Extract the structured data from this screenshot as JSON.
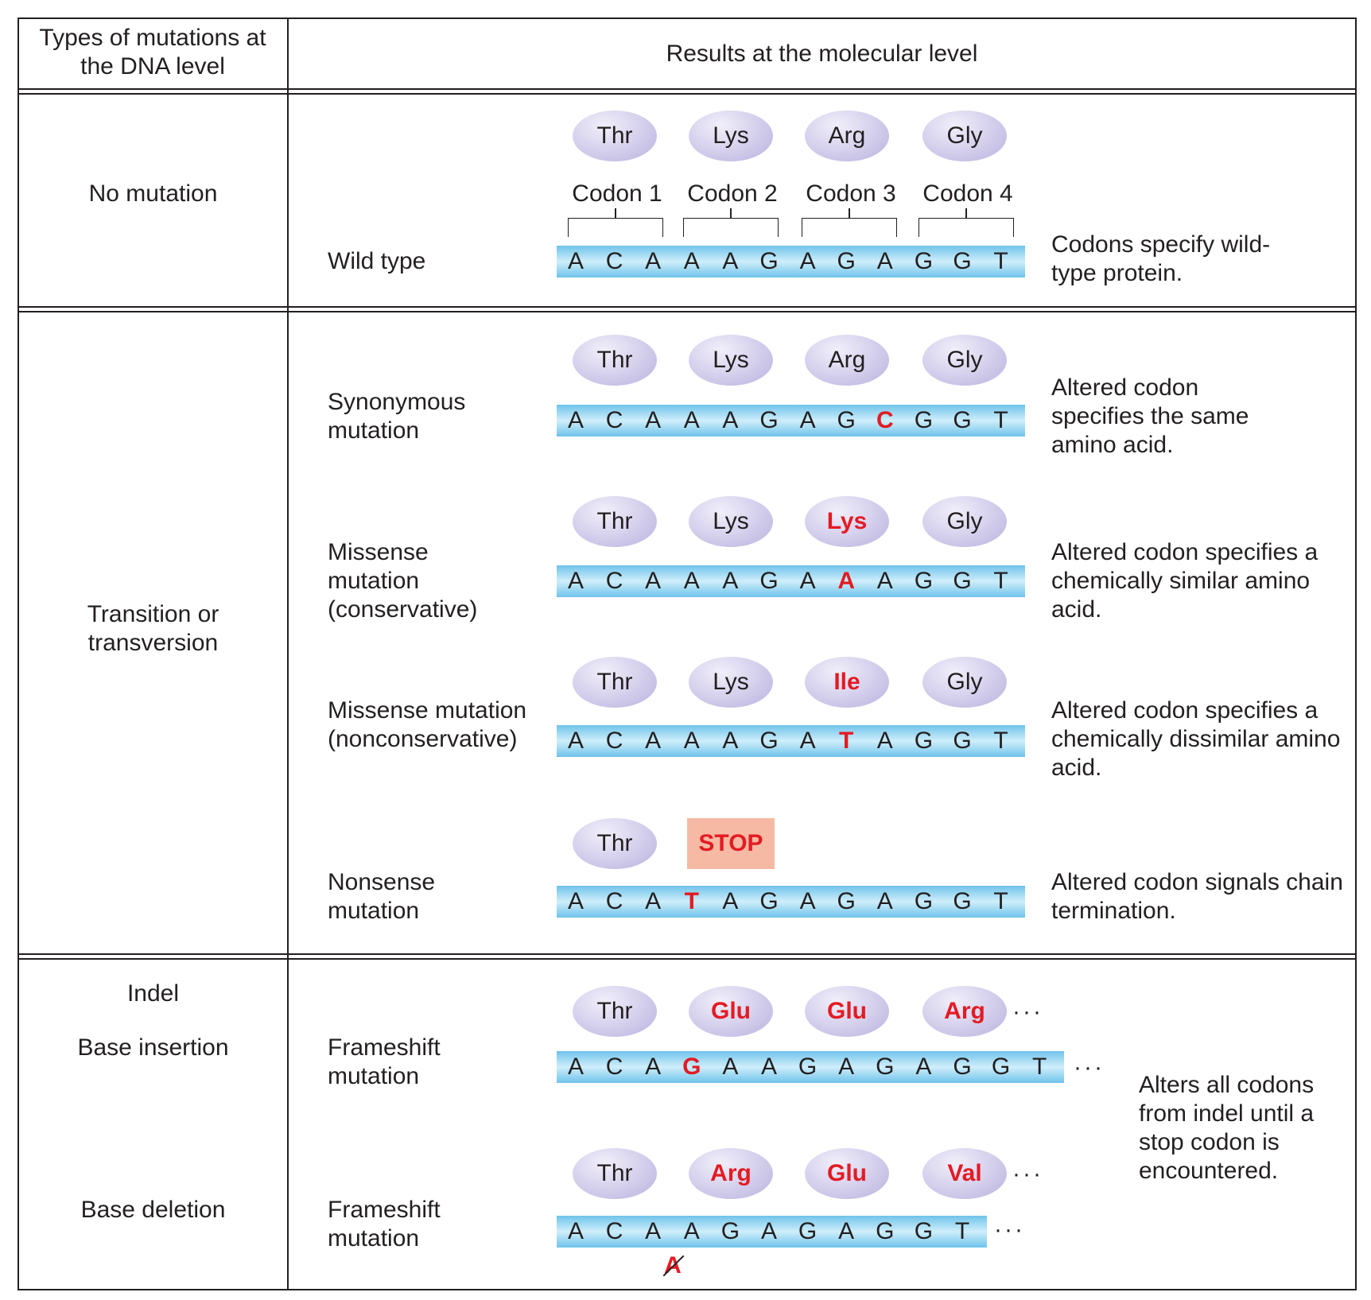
{
  "header": {
    "col1": "Types of mutations at the DNA level",
    "col2": "Results at the molecular level"
  },
  "rows": {
    "no_mutation": {
      "category": "No mutation",
      "codon_labels": [
        "Codon 1",
        "Codon 2",
        "Codon 3",
        "Codon 4"
      ],
      "label": "Wild type",
      "aminos": [
        "Thr",
        "Lys",
        "Arg",
        "Gly"
      ],
      "sequence": [
        "A",
        "C",
        "A",
        "A",
        "A",
        "G",
        "A",
        "G",
        "A",
        "G",
        "G",
        "T"
      ],
      "description": "Codons specify wild-type protein."
    },
    "transition": {
      "category": "Transition or transversion",
      "synonymous": {
        "label": "Synonymous mutation",
        "aminos": [
          "Thr",
          "Lys",
          "Arg",
          "Gly"
        ],
        "sequence": [
          "A",
          "C",
          "A",
          "A",
          "A",
          "G",
          "A",
          "G",
          "C",
          "G",
          "G",
          "T"
        ],
        "mutated_base": "C",
        "description": "Altered codon specifies the same amino acid."
      },
      "missense_conservative": {
        "label": "Missense mutation (conservative)",
        "aminos": [
          "Thr",
          "Lys",
          "Lys",
          "Gly"
        ],
        "sequence": [
          "A",
          "C",
          "A",
          "A",
          "A",
          "G",
          "A",
          "A",
          "A",
          "G",
          "G",
          "T"
        ],
        "mutated_base": "A",
        "description": "Altered codon specifies a chemically similar amino acid."
      },
      "missense_nonconservative": {
        "label": "Missense mutation (nonconservative)",
        "aminos": [
          "Thr",
          "Lys",
          "Ile",
          "Gly"
        ],
        "sequence": [
          "A",
          "C",
          "A",
          "A",
          "A",
          "G",
          "A",
          "T",
          "A",
          "G",
          "G",
          "T"
        ],
        "mutated_base": "T",
        "description": "Altered codon specifies a chemically dissimilar amino acid."
      },
      "nonsense": {
        "label": "Nonsense mutation",
        "aminos": [
          "Thr"
        ],
        "stop": "STOP",
        "sequence": [
          "A",
          "C",
          "A",
          "T",
          "A",
          "G",
          "A",
          "G",
          "A",
          "G",
          "G",
          "T"
        ],
        "mutated_base": "T",
        "description": "Altered codon signals chain termination."
      }
    },
    "indel": {
      "category": "Indel",
      "insertion": {
        "category": "Base insertion",
        "label": "Frameshift mutation",
        "aminos": [
          "Thr",
          "Glu",
          "Glu",
          "Arg"
        ],
        "sequence": [
          "A",
          "C",
          "A",
          "G",
          "A",
          "A",
          "G",
          "A",
          "G",
          "A",
          "G",
          "G",
          "T"
        ],
        "mutated_base": "G",
        "ellipsis": "···"
      },
      "deletion": {
        "category": "Base deletion",
        "label": "Frameshift mutation",
        "aminos": [
          "Thr",
          "Arg",
          "Glu",
          "Val"
        ],
        "sequence": [
          "A",
          "C",
          "A",
          "A",
          "G",
          "A",
          "G",
          "A",
          "G",
          "G",
          "T"
        ],
        "deleted_base": "A",
        "ellipsis": "···"
      },
      "description": "Alters all codons from indel until a stop codon is encountered."
    }
  },
  "colors": {
    "mutation": "#e31b23",
    "strand": "#6fc3ea",
    "oval": "#c9c2e6",
    "stop_box": "#f6b9a4",
    "border": "#231f20"
  }
}
